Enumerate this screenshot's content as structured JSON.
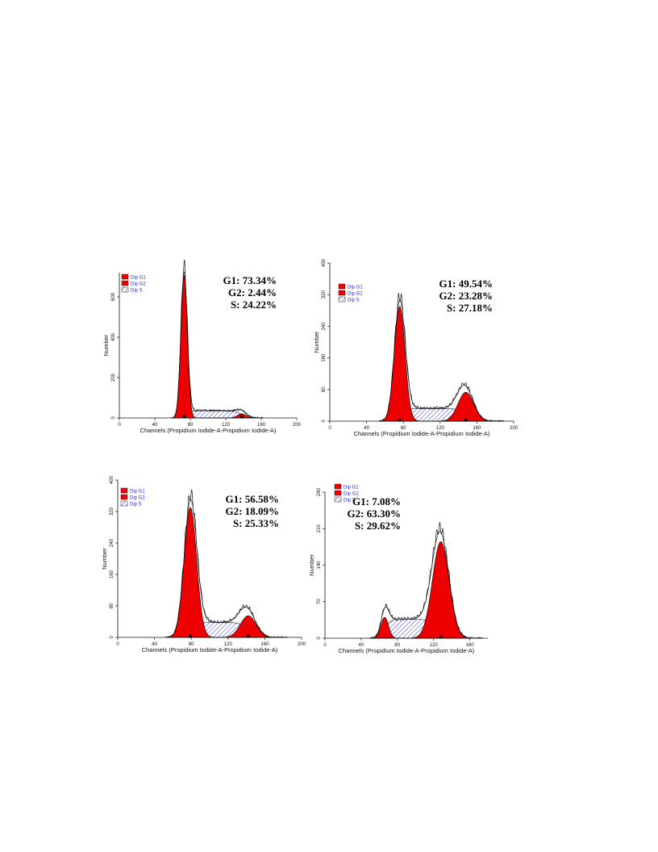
{
  "chart_data": [
    {
      "type": "area",
      "xlabel": "Channels (Propidium Iodide-A-Propidium Iodide-A)",
      "ylabel": "Number",
      "xticks": [
        "0",
        "40",
        "80",
        "120",
        "160",
        "200"
      ],
      "yticks": [
        "0",
        "200",
        "400",
        "600"
      ],
      "xlim": [
        0,
        200
      ],
      "ylim": [
        0,
        720
      ],
      "legend": {
        "placement": "top-left",
        "entries": [
          "Dip G1",
          "Dip G2",
          "Dip S"
        ]
      },
      "stats": {
        "g1": "G1: 73.34%",
        "g2": "G2: 2.44%",
        "s": "S: 24.22%"
      },
      "g1": {
        "center": 73,
        "height": 705,
        "sigma": 3.6
      },
      "g2": {
        "center": 138,
        "height": 20,
        "sigma": 5
      },
      "s": {
        "from": 73,
        "to": 138,
        "height": 36
      },
      "markers": [
        73,
        138
      ]
    },
    {
      "type": "area",
      "xlabel": "Channels (Propidium Iodide-A-Propidium Iodide-A)",
      "ylabel": "Number",
      "xticks": [
        "0",
        "40",
        "80",
        "120",
        "160",
        "200"
      ],
      "yticks": [
        "0",
        "80",
        "160",
        "240",
        "320",
        "400"
      ],
      "xlim": [
        0,
        200
      ],
      "ylim": [
        0,
        400
      ],
      "legend": {
        "placement": "top-left",
        "entries": [
          "Dip G1",
          "Dip G2",
          "Dip S"
        ]
      },
      "stats": {
        "g1": "G1: 49.54%",
        "g2": "G2: 23.28%",
        "s": "S: 27.18%"
      },
      "g1": {
        "center": 76,
        "height": 290,
        "sigma": 5.8
      },
      "g2": {
        "center": 148,
        "height": 73,
        "sigma": 8.5
      },
      "s": {
        "from": 76,
        "to": 148,
        "height": 32
      },
      "markers": [
        76,
        148
      ]
    },
    {
      "type": "area",
      "xlabel": "Channels (Propidium Iodide-A-Propidium Iodide-A)",
      "ylabel": "Number",
      "xticks": [
        "0",
        "40",
        "80",
        "120",
        "160",
        "200"
      ],
      "yticks": [
        "0",
        "80",
        "160",
        "240",
        "320",
        "400"
      ],
      "xlim": [
        0,
        200
      ],
      "ylim": [
        0,
        400
      ],
      "legend": {
        "placement": "top-left",
        "entries": [
          "Dip G1",
          "Dip G2",
          "Dip S"
        ]
      },
      "stats": {
        "g1": "G1: 56.58%",
        "g2": "G2: 18.09%",
        "s": "S: 25.33%"
      },
      "g1": {
        "center": 79,
        "height": 330,
        "sigma": 6.8
      },
      "g2": {
        "center": 142,
        "height": 55,
        "sigma": 8.5
      },
      "s": {
        "from": 79,
        "to": 142,
        "height": 38
      },
      "markers": [
        79,
        142
      ]
    },
    {
      "type": "area",
      "xlabel": "Channels (Propidium Iodide-A-Propidium Iodide-A)",
      "ylabel": "Number",
      "xticks": [
        "0",
        "40",
        "80",
        "120",
        "160"
      ],
      "yticks": [
        "0",
        "70",
        "140",
        "210",
        "280"
      ],
      "xlim": [
        0,
        180
      ],
      "ylim": [
        0,
        280
      ],
      "legend": {
        "placement": "top-left",
        "entries": [
          "Dip G1",
          "Dip G2",
          "Dip S"
        ]
      },
      "stats": {
        "g1": "G1: 7.08%",
        "g2": "G2: 63.30%",
        "s": "S: 29.62%"
      },
      "g1": {
        "center": 66,
        "height": 40,
        "sigma": 4.2
      },
      "g2": {
        "center": 128,
        "height": 185,
        "sigma": 9.2
      },
      "s": {
        "from": 66,
        "to": 128,
        "height": 36
      },
      "markers": [
        128
      ]
    }
  ]
}
